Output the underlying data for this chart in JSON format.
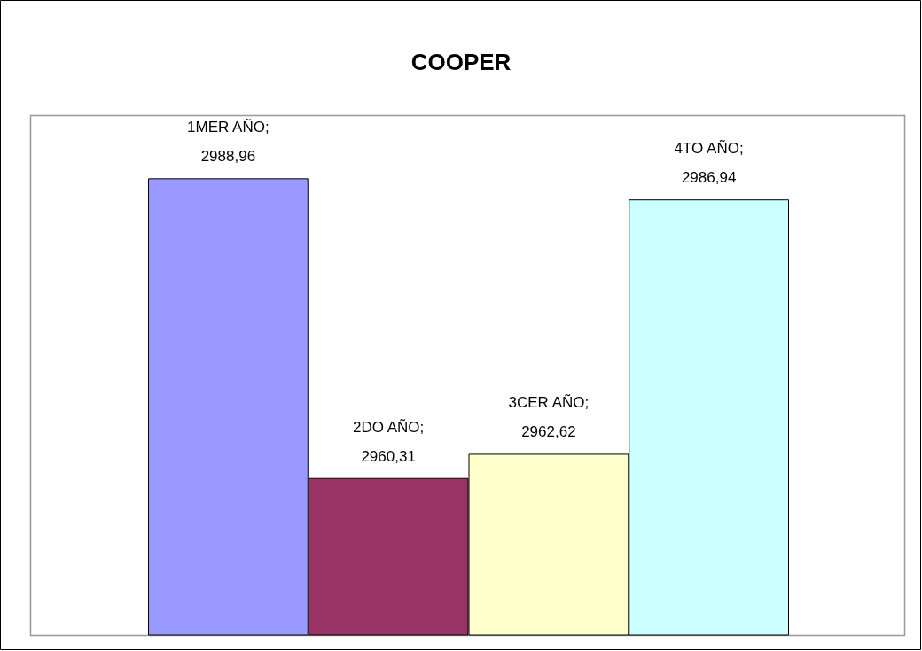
{
  "chart_data": {
    "type": "bar",
    "title": "COOPER",
    "categories": [
      null,
      null,
      null,
      null
    ],
    "values": [
      2988.96,
      2960.31,
      2962.62,
      2986.94
    ],
    "value_labels": [
      "1MER AÑO;\n2988,96",
      "2DO AÑO;\n2960,31",
      "3CER AÑO;\n2962,62",
      "4TO AÑO;\n2986,94"
    ],
    "colors": [
      "#9999ff",
      "#993366",
      "#ffffcc",
      "#ccffff"
    ],
    "ylim": [
      2945.3,
      2995
    ],
    "tick_labels": false,
    "grid": false
  }
}
